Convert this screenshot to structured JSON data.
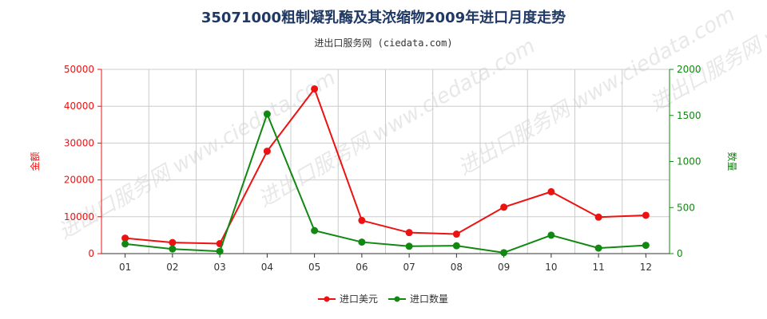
{
  "title": "35071000粗制凝乳酶及其浓缩物2009年进口月度走势",
  "subtitle": "进出口服务网 (ciedata.com)",
  "watermark": "进出口服务网 www.ciedata.com",
  "colors": {
    "usd": "#ee1111",
    "qty": "#118811",
    "title": "#1f3864",
    "grid": "#cccccc"
  },
  "chart_data": {
    "type": "line",
    "categories": [
      "01",
      "02",
      "03",
      "04",
      "05",
      "06",
      "07",
      "08",
      "09",
      "10",
      "11",
      "12"
    ],
    "y_left": {
      "label": "金额",
      "range": [
        0,
        50000
      ],
      "ticks": [
        "0",
        "10000",
        "20000",
        "30000",
        "40000",
        "50000"
      ]
    },
    "y_right": {
      "label": "数量",
      "range": [
        0,
        2000
      ],
      "ticks": [
        "0",
        "500",
        "1000",
        "1500",
        "2000"
      ]
    },
    "series": [
      {
        "name": "进口美元",
        "axis": "left",
        "color": "#ee1111",
        "values": [
          4200,
          3000,
          2700,
          27800,
          44700,
          9000,
          5700,
          5300,
          12600,
          16800,
          9900,
          10400
        ]
      },
      {
        "name": "进口数量",
        "axis": "right",
        "color": "#118811",
        "values": [
          105,
          50,
          25,
          1515,
          250,
          125,
          80,
          85,
          10,
          200,
          60,
          90
        ]
      }
    ],
    "grid": true,
    "legend": "bottom-center"
  }
}
